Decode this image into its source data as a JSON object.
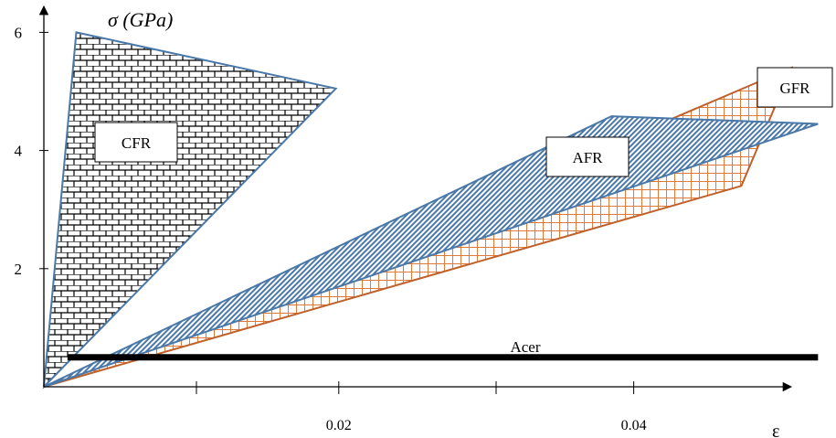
{
  "chart_data": {
    "type": "area",
    "title": "",
    "ylabel": "σ (GPa)",
    "xlabel": "ε",
    "xlim": [
      0,
      0.05
    ],
    "ylim": [
      0,
      6.3
    ],
    "x_ticks": [
      0.02,
      0.04
    ],
    "y_ticks": [
      2,
      4,
      6
    ],
    "x_tick_labels": [
      "0.02",
      "0.04"
    ],
    "y_tick_labels": [
      "2",
      "4",
      "6"
    ],
    "series": [
      {
        "name": "CFR",
        "pattern": "brick",
        "outline_color": "#4a78a8",
        "polygon": [
          [
            0,
            0
          ],
          [
            0.0022,
            6.0
          ],
          [
            0.0198,
            5.05
          ]
        ]
      },
      {
        "name": "GFR",
        "pattern": "crosshatch",
        "outline_color": "#c0602a",
        "polygon": [
          [
            0,
            0
          ],
          [
            0.0473,
            3.4
          ],
          [
            0.0507,
            5.4
          ],
          [
            0,
            0
          ]
        ]
      },
      {
        "name": "AFR",
        "pattern": "diagonal",
        "outline_color": "#4a78a8",
        "polygon": [
          [
            0,
            0
          ],
          [
            0.0385,
            4.58
          ],
          [
            0.0525,
            4.45
          ]
        ]
      },
      {
        "name": "Acer",
        "pattern": "solid",
        "outline_color": "#000000",
        "line": [
          [
            0.0016,
            0.5
          ],
          [
            0.0525,
            0.5
          ]
        ]
      }
    ]
  }
}
